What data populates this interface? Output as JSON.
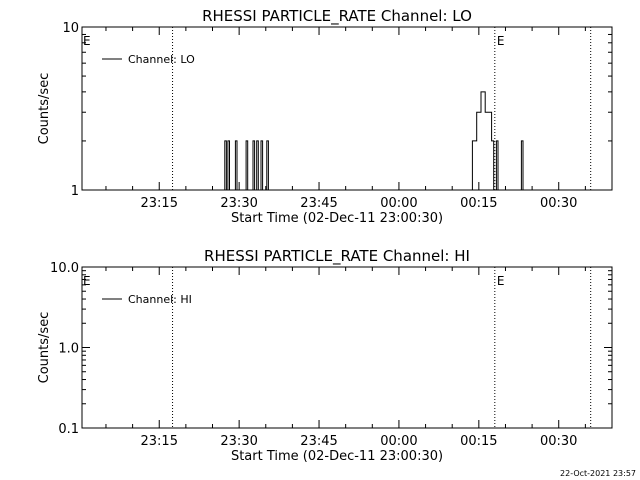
{
  "chart_data": [
    {
      "type": "line",
      "title": "RHESSI PARTICLE_RATE Channel: LO",
      "xlabel": "Start Time (02-Dec-11 23:00:30)",
      "ylabel": "Counts/sec",
      "y_scale": "log",
      "ylim": [
        1,
        10
      ],
      "y_ticks": [
        "1",
        "10"
      ],
      "x_tick_labels": [
        "23:15",
        "23:30",
        "23:45",
        "00:00",
        "00:15",
        "00:30"
      ],
      "x_tick_minutes": [
        15,
        30,
        45,
        60,
        75,
        90
      ],
      "xlim_minutes": [
        0.5,
        100
      ],
      "vlines_minutes": [
        17.5,
        78,
        96
      ],
      "markers": [
        {
          "label": "E",
          "position": "top-left"
        },
        {
          "label": "E",
          "at_minute": 78
        }
      ],
      "legend": "top-left",
      "grid": false,
      "series": [
        {
          "name": "Channel: LO",
          "points": [
            [
              26.9,
              1
            ],
            [
              27.3,
              2
            ],
            [
              27.6,
              1
            ],
            [
              27.9,
              2
            ],
            [
              28.2,
              1
            ],
            [
              29.3,
              2
            ],
            [
              29.6,
              1
            ],
            [
              31.3,
              2
            ],
            [
              31.6,
              1
            ],
            [
              32.6,
              2
            ],
            [
              32.9,
              1
            ],
            [
              33.3,
              2
            ],
            [
              33.6,
              1
            ],
            [
              34.1,
              2
            ],
            [
              34.4,
              1
            ],
            [
              35.2,
              2
            ],
            [
              35.5,
              1
            ],
            [
              73.8,
              2
            ],
            [
              74.2,
              2
            ],
            [
              74.6,
              3
            ],
            [
              75.0,
              3
            ],
            [
              75.4,
              4
            ],
            [
              75.8,
              4
            ],
            [
              76.2,
              3
            ],
            [
              76.6,
              3
            ],
            [
              77.0,
              3
            ],
            [
              77.4,
              2
            ],
            [
              77.8,
              1
            ],
            [
              78.3,
              2
            ],
            [
              78.6,
              1
            ],
            [
              83.0,
              2
            ],
            [
              83.3,
              1
            ]
          ]
        }
      ]
    },
    {
      "type": "line",
      "title": "RHESSI PARTICLE_RATE Channel: HI",
      "xlabel": "Start Time (02-Dec-11 23:00:30)",
      "ylabel": "Counts/sec",
      "y_scale": "log",
      "ylim": [
        0.1,
        10
      ],
      "y_ticks": [
        "0.1",
        "1.0",
        "10.0"
      ],
      "x_tick_labels": [
        "23:15",
        "23:30",
        "23:45",
        "00:00",
        "00:15",
        "00:30"
      ],
      "x_tick_minutes": [
        15,
        30,
        45,
        60,
        75,
        90
      ],
      "xlim_minutes": [
        0.5,
        100
      ],
      "vlines_minutes": [
        17.5,
        78,
        96
      ],
      "markers": [
        {
          "label": "E",
          "position": "top-left"
        },
        {
          "label": "E",
          "at_minute": 78
        }
      ],
      "legend": "top-left",
      "grid": false,
      "series": [
        {
          "name": "Channel: HI",
          "points": []
        }
      ]
    }
  ],
  "footer": "22-Oct-2021 23:57"
}
